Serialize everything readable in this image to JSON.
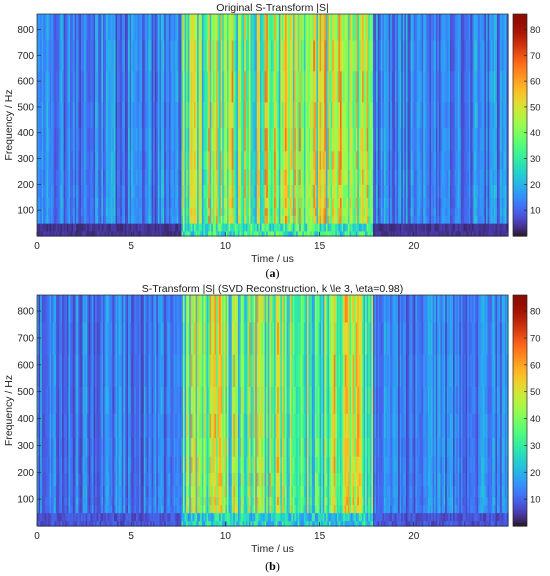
{
  "chart_data": [
    {
      "type": "heatmap",
      "panel_label": "(a)",
      "panel_letter": "a",
      "title": "Original S-Transform |S|",
      "xlabel": "Time / us",
      "ylabel": "Frequency / Hz",
      "xlim": [
        0,
        25
      ],
      "ylim": [
        0,
        860
      ],
      "x_ticks": [
        0,
        5,
        10,
        15,
        20
      ],
      "y_ticks": [
        100,
        200,
        300,
        400,
        500,
        600,
        700,
        800
      ],
      "colorbar": {
        "min": 0,
        "max": 86,
        "ticks": [
          10,
          20,
          30,
          40,
          50,
          60,
          70,
          80
        ],
        "colormap": "turbo"
      },
      "grid": false,
      "segments": [
        {
          "t_start": 0,
          "t_end": 7.7,
          "mean_magnitude": 14,
          "low_freq_magnitude": 4
        },
        {
          "t_start": 7.7,
          "t_end": 17.8,
          "mean_magnitude": 40,
          "low_freq_magnitude": 30
        },
        {
          "t_start": 17.8,
          "t_end": 25,
          "mean_magnitude": 14,
          "low_freq_magnitude": 4
        }
      ]
    },
    {
      "type": "heatmap",
      "panel_label": "(b)",
      "panel_letter": "b",
      "title": "S-Transform |S| (SVD Reconstruction, k \\le 3, \\eta=0.98)",
      "xlabel": "Time / us",
      "ylabel": "Frequency / Hz",
      "xlim": [
        0,
        25
      ],
      "ylim": [
        0,
        860
      ],
      "x_ticks": [
        0,
        5,
        10,
        15,
        20
      ],
      "y_ticks": [
        100,
        200,
        300,
        400,
        500,
        600,
        700,
        800
      ],
      "colorbar": {
        "min": 0,
        "max": 86,
        "ticks": [
          10,
          20,
          30,
          40,
          50,
          60,
          70,
          80
        ],
        "colormap": "turbo"
      },
      "grid": false,
      "segments": [
        {
          "t_start": 0,
          "t_end": 7.7,
          "mean_magnitude": 13,
          "low_freq_magnitude": 8
        },
        {
          "t_start": 7.7,
          "t_end": 17.8,
          "mean_magnitude": 38,
          "low_freq_magnitude": 24
        },
        {
          "t_start": 17.8,
          "t_end": 25,
          "mean_magnitude": 13,
          "low_freq_magnitude": 8
        }
      ]
    }
  ]
}
